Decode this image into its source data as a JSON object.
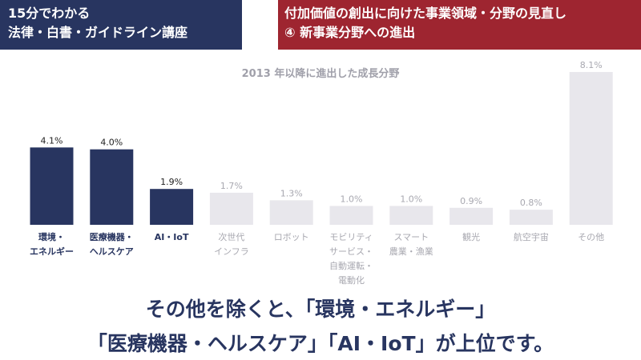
{
  "header": {
    "left_line1": "15分でわかる",
    "left_line2": "法律・白書・ガイドライン講座",
    "right_line1": "付加価値の創出に向けた事業領域・分野の見直し",
    "right_line2": "④ 新事業分野への進出"
  },
  "caption": {
    "line1": "その他を除くと、「環境・エネルギー」",
    "line2": "「医療機器・ヘルスケア」「AI・IoT」が上位です。"
  },
  "colors": {
    "highlight": "#283560",
    "muted": "#e8e7ec",
    "label_highlight": "#283560",
    "label_muted": "#a8a8b0",
    "left_banner": "#283560",
    "right_banner": "#9e2530"
  },
  "chart_data": {
    "type": "bar",
    "title": "2013 年以降に進出した成長分野",
    "unit": "%",
    "ylim": [
      0,
      8.1
    ],
    "categories": [
      [
        "環境・",
        "エネルギー"
      ],
      [
        "医療機器・",
        "ヘルスケア"
      ],
      [
        "AI・IoT"
      ],
      [
        "次世代",
        "インフラ"
      ],
      [
        "ロボット"
      ],
      [
        "モビリティ",
        "サービス・",
        "自動運転・",
        "電動化"
      ],
      [
        "スマート",
        "農業・漁業"
      ],
      [
        "観光"
      ],
      [
        "航空宇宙"
      ],
      [
        "その他"
      ]
    ],
    "values": [
      4.1,
      4.0,
      1.9,
      1.7,
      1.3,
      1.0,
      1.0,
      0.9,
      0.8,
      8.1
    ],
    "value_labels": [
      "4.1%",
      "4.0%",
      "1.9%",
      "1.7%",
      "1.3%",
      "1.0%",
      "1.0%",
      "0.9%",
      "0.8%",
      "8.1%"
    ],
    "highlighted": [
      true,
      true,
      true,
      false,
      false,
      false,
      false,
      false,
      false,
      false
    ],
    "grid": false,
    "legend": "none"
  }
}
